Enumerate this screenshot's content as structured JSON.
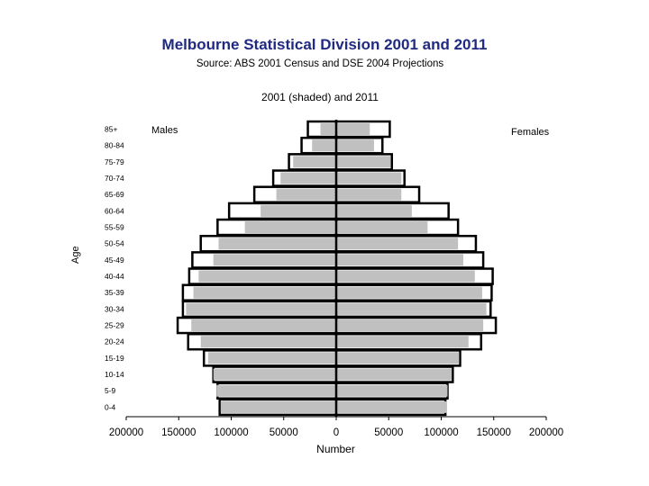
{
  "title": "Melbourne Statistical Division 2001 and 2011",
  "subtitle": "Source:   ABS 2001 Census and DSE 2004 Projections",
  "chart_data": {
    "type": "bar",
    "orientation": "horizontal",
    "title": "2001 (shaded) and 2011",
    "xlabel": "Number",
    "ylabel": "Age",
    "left_group_label": "Males",
    "right_group_label": "Females",
    "categories": [
      "85+",
      "80-84",
      "75-79",
      "70-74",
      "65-69",
      "60-64",
      "55-59",
      "50-54",
      "45-49",
      "40-44",
      "35-39",
      "30-34",
      "25-29",
      "20-24",
      "15-19",
      "10-14",
      "5-9",
      "0-4"
    ],
    "x_ticks": [
      "200000",
      "150000",
      "100000",
      "50000",
      "0",
      "50000",
      "100000",
      "150000",
      "200000"
    ],
    "xlim": [
      -200000,
      200000
    ],
    "series": [
      {
        "name": "2001",
        "style": "shaded",
        "males": [
          15000,
          23000,
          41000,
          53000,
          57000,
          72000,
          87000,
          112000,
          117000,
          131000,
          136000,
          143000,
          138000,
          129000,
          122000,
          117000,
          114000,
          110000
        ],
        "females": [
          32000,
          36000,
          52000,
          62000,
          62000,
          72000,
          87000,
          116000,
          121000,
          132000,
          139000,
          143000,
          140000,
          126000,
          117000,
          110000,
          106000,
          105000
        ]
      },
      {
        "name": "2011",
        "style": "outline",
        "males": [
          27000,
          33000,
          45000,
          60000,
          78000,
          102000,
          113000,
          129000,
          137000,
          140000,
          146000,
          146000,
          151000,
          141000,
          126000,
          117000,
          113000,
          111000
        ],
        "females": [
          51000,
          44000,
          53000,
          65000,
          79000,
          107000,
          116000,
          133000,
          140000,
          149000,
          148000,
          147000,
          152000,
          138000,
          118000,
          111000,
          106000,
          104000
        ]
      }
    ],
    "colors": {
      "shaded": "#c0c0c0",
      "outline_fill": "#ffffff",
      "outline_stroke": "#000000"
    },
    "grid": false
  }
}
